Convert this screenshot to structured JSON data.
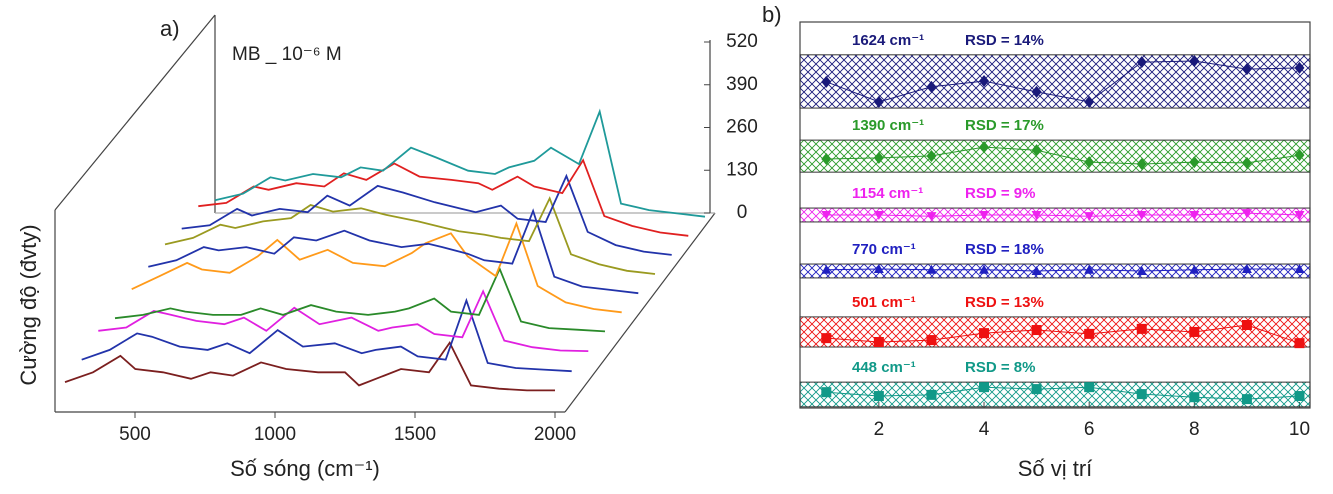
{
  "chart_data": [
    {
      "type": "waterfall",
      "panel_label": "a)",
      "annotation": "MB _ 10⁻⁶ M",
      "xlabel": "Số sóng (cm⁻¹)",
      "ylabel": "Cường độ (đvty)",
      "xlim": [
        250,
        2050
      ],
      "xticks": [
        500,
        1000,
        1500,
        2000
      ],
      "zlim": [
        0,
        520
      ],
      "zticks": [
        0,
        130,
        260,
        390,
        520
      ],
      "x": [
        250,
        350,
        448,
        501,
        600,
        700,
        770,
        850,
        950,
        1040,
        1154,
        1250,
        1300,
        1390,
        1450,
        1550,
        1624,
        1700,
        1800,
        1900,
        2000
      ],
      "series": [
        {
          "color": "#7b1f1f",
          "values": [
            30,
            60,
            110,
            70,
            60,
            40,
            60,
            50,
            90,
            70,
            60,
            60,
            20,
            50,
            70,
            60,
            150,
            20,
            10,
            5,
            5
          ]
        },
        {
          "color": "#2233aa",
          "values": [
            40,
            70,
            120,
            110,
            80,
            70,
            90,
            60,
            130,
            80,
            90,
            60,
            70,
            80,
            50,
            40,
            220,
            30,
            15,
            10,
            5
          ]
        },
        {
          "color": "#e020e0",
          "values": [
            70,
            80,
            130,
            120,
            100,
            90,
            110,
            70,
            140,
            90,
            110,
            70,
            80,
            90,
            60,
            50,
            190,
            40,
            20,
            10,
            8
          ]
        },
        {
          "color": "#2a8a2a",
          "values": [
            50,
            60,
            80,
            70,
            60,
            60,
            80,
            60,
            90,
            70,
            60,
            70,
            80,
            110,
            70,
            60,
            200,
            40,
            20,
            15,
            10
          ]
        },
        {
          "color": "#ff9a1a",
          "values": [
            80,
            120,
            160,
            140,
            130,
            180,
            230,
            170,
            200,
            160,
            150,
            190,
            220,
            250,
            180,
            120,
            280,
            90,
            40,
            20,
            10
          ]
        },
        {
          "color": "#2233aa",
          "values": [
            90,
            110,
            150,
            140,
            150,
            130,
            180,
            170,
            200,
            170,
            150,
            160,
            150,
            130,
            110,
            100,
            260,
            60,
            30,
            20,
            10
          ]
        },
        {
          "color": "#9a9a20",
          "values": [
            100,
            120,
            160,
            150,
            170,
            180,
            220,
            200,
            210,
            190,
            170,
            150,
            140,
            130,
            120,
            110,
            240,
            70,
            40,
            20,
            10
          ]
        },
        {
          "color": "#2233aa",
          "values": [
            90,
            100,
            150,
            130,
            150,
            140,
            190,
            160,
            220,
            200,
            170,
            150,
            140,
            160,
            120,
            110,
            250,
            80,
            40,
            20,
            10
          ]
        },
        {
          "color": "#e02020",
          "values": [
            100,
            110,
            160,
            150,
            170,
            160,
            200,
            180,
            230,
            190,
            180,
            170,
            150,
            190,
            160,
            140,
            240,
            70,
            40,
            20,
            10
          ]
        },
        {
          "color": "#1f9a9a",
          "values": [
            60,
            80,
            130,
            120,
            140,
            130,
            160,
            150,
            220,
            190,
            150,
            140,
            160,
            180,
            220,
            170,
            330,
            50,
            30,
            20,
            10
          ]
        }
      ]
    },
    {
      "type": "banded-scatter",
      "panel_label": "b)",
      "xlabel": "Số vị trí",
      "xlim": [
        0.5,
        10.2
      ],
      "xticks": [
        2,
        4,
        6,
        8,
        10
      ],
      "ylim": [
        0,
        100
      ],
      "x": [
        1,
        2,
        3,
        4,
        5,
        6,
        7,
        8,
        9,
        10
      ],
      "series": [
        {
          "name": "1624 cm⁻¹",
          "annotation": "RSD = 14%",
          "color": "#1a1a7a",
          "marker": "diamond",
          "band": [
            77.7,
            91.5
          ],
          "values": [
            84.5,
            79.3,
            83.2,
            84.7,
            81.9,
            79.3,
            89.6,
            89.9,
            87.8,
            88.1
          ]
        },
        {
          "name": "1390 cm⁻¹",
          "annotation": "RSD = 17%",
          "color": "#2a9a2a",
          "marker": "diamond",
          "band": [
            61.1,
            69.4
          ],
          "values": [
            64.5,
            64.8,
            65.3,
            67.6,
            66.8,
            63.7,
            63.2,
            63.7,
            63.5,
            65.5
          ]
        },
        {
          "name": "1154 cm⁻¹",
          "annotation": "RSD = 9%",
          "color": "#ee22ee",
          "marker": "triangle-down",
          "band": [
            48.2,
            51.8
          ],
          "values": [
            50.0,
            50.0,
            49.7,
            50.0,
            50.0,
            49.7,
            50.0,
            50.0,
            50.5,
            50.0
          ]
        },
        {
          "name": "770 cm⁻¹",
          "annotation": "RSD = 18%",
          "color": "#2020c0",
          "marker": "triangle-up",
          "band": [
            33.7,
            37.3
          ],
          "values": [
            35.8,
            36.0,
            35.8,
            35.8,
            35.5,
            35.8,
            35.5,
            35.8,
            36.0,
            36.0
          ]
        },
        {
          "name": "501 cm⁻¹",
          "annotation": "RSD = 13%",
          "color": "#ee1111",
          "marker": "square",
          "band": [
            15.8,
            23.6
          ],
          "values": [
            18.1,
            17.1,
            17.6,
            19.4,
            20.2,
            19.2,
            20.5,
            19.7,
            21.5,
            16.8
          ]
        },
        {
          "name": "448 cm⁻¹",
          "annotation": "RSD = 8%",
          "color": "#119988",
          "marker": "square",
          "band": [
            0.3,
            6.7
          ],
          "values": [
            4.1,
            3.1,
            3.4,
            5.4,
            4.9,
            5.4,
            3.6,
            2.8,
            2.3,
            3.1
          ]
        }
      ]
    }
  ]
}
